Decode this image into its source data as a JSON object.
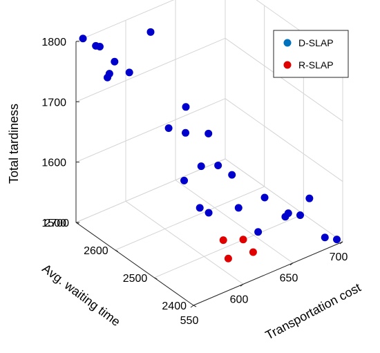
{
  "chart_data": {
    "type": "scatter",
    "projection": "3d",
    "grid": true,
    "legend_position": "top-right",
    "axes": {
      "x": {
        "label": "Transportation cost",
        "range": [
          550,
          700
        ],
        "ticks": [
          "550",
          "600",
          "650",
          "700"
        ]
      },
      "y": {
        "label": "Avg. waiting time",
        "range": [
          2400,
          2700
        ],
        "ticks": [
          "2400",
          "2500",
          "2600",
          "2700"
        ]
      },
      "z": {
        "label": "Total tardiness",
        "range": [
          1500,
          1800
        ],
        "ticks": [
          "1500",
          "1600",
          "1700",
          "1800"
        ]
      }
    },
    "series": [
      {
        "name": "D-SLAP",
        "color": "#0000cc",
        "legend_color": "#0072bd",
        "points": [
          {
            "x": 557,
            "y": 2700,
            "z": 1800
          },
          {
            "x": 566,
            "y": 2690,
            "z": 1786
          },
          {
            "x": 570,
            "y": 2690,
            "z": 1782
          },
          {
            "x": 575,
            "y": 2665,
            "z": 1765
          },
          {
            "x": 580,
            "y": 2640,
            "z": 1755
          },
          {
            "x": 560,
            "y": 2640,
            "z": 1767
          },
          {
            "x": 558,
            "y": 2640,
            "z": 1762
          },
          {
            "x": 625,
            "y": 2700,
            "z": 1763
          },
          {
            "x": 590,
            "y": 2565,
            "z": 1690
          },
          {
            "x": 605,
            "y": 2560,
            "z": 1674
          },
          {
            "x": 625,
            "y": 2610,
            "z": 1680
          },
          {
            "x": 580,
            "y": 2500,
            "z": 1640
          },
          {
            "x": 605,
            "y": 2520,
            "z": 1637
          },
          {
            "x": 630,
            "y": 2565,
            "z": 1653
          },
          {
            "x": 580,
            "y": 2460,
            "z": 1613
          },
          {
            "x": 585,
            "y": 2450,
            "z": 1606
          },
          {
            "x": 620,
            "y": 2515,
            "z": 1630
          },
          {
            "x": 630,
            "y": 2505,
            "z": 1612
          },
          {
            "x": 615,
            "y": 2450,
            "z": 1593
          },
          {
            "x": 615,
            "y": 2400,
            "z": 1576
          },
          {
            "x": 655,
            "y": 2485,
            "z": 1566
          },
          {
            "x": 660,
            "y": 2445,
            "z": 1549
          },
          {
            "x": 665,
            "y": 2450,
            "z": 1549
          },
          {
            "x": 675,
            "y": 2445,
            "z": 1541
          },
          {
            "x": 700,
            "y": 2485,
            "z": 1533
          },
          {
            "x": 690,
            "y": 2420,
            "z": 1505
          },
          {
            "x": 700,
            "y": 2415,
            "z": 1497
          }
        ]
      },
      {
        "name": "R-SLAP",
        "color": "#e00000",
        "legend_color": "#e00000",
        "points": [
          {
            "x": 580,
            "y": 2400,
            "z": 1587
          },
          {
            "x": 600,
            "y": 2400,
            "z": 1574
          },
          {
            "x": 585,
            "y": 2400,
            "z": 1553
          },
          {
            "x": 610,
            "y": 2400,
            "z": 1546
          }
        ]
      }
    ]
  }
}
